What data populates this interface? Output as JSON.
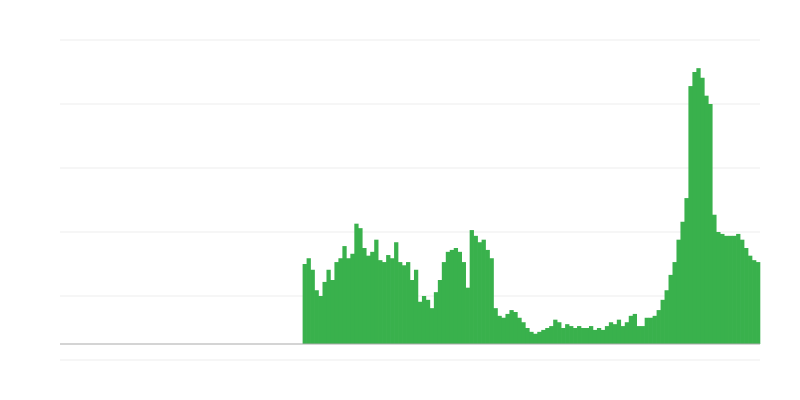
{
  "chart_data": {
    "type": "bar",
    "title": "",
    "xlabel": "",
    "ylabel": "",
    "ylim": [
      -0.25,
      4.75
    ],
    "gridlines": [
      -0.25,
      0.75,
      1.75,
      2.75,
      3.75,
      4.75
    ],
    "grid": true,
    "legend": "none",
    "colors": {
      "bar": "#39b14c",
      "grid": "#eeeeee",
      "baseline": "#aaaaaa"
    },
    "values": [
      0,
      0,
      0,
      0,
      0,
      0,
      0,
      0,
      0,
      0,
      0,
      0,
      0,
      0,
      0,
      0,
      0,
      0,
      0,
      0,
      0,
      0,
      0,
      0,
      0,
      0,
      0,
      0,
      0,
      0,
      0,
      0,
      0,
      0,
      0,
      0,
      0,
      0,
      0,
      0,
      0,
      0,
      0,
      0,
      0,
      0,
      0,
      0,
      0,
      0,
      0,
      0,
      0,
      0,
      0,
      0,
      0,
      0,
      0,
      0,
      0,
      1.25,
      1.34,
      1.16,
      0.84,
      0.75,
      0.97,
      1.16,
      1.0,
      1.28,
      1.34,
      1.53,
      1.34,
      1.41,
      1.88,
      1.81,
      1.5,
      1.38,
      1.44,
      1.63,
      1.31,
      1.28,
      1.39,
      1.34,
      1.59,
      1.28,
      1.23,
      1.28,
      1.0,
      1.16,
      0.66,
      0.75,
      0.69,
      0.56,
      0.81,
      1.0,
      1.28,
      1.44,
      1.47,
      1.5,
      1.44,
      1.28,
      0.88,
      1.78,
      1.69,
      1.59,
      1.63,
      1.47,
      1.34,
      0.56,
      0.44,
      0.41,
      0.47,
      0.53,
      0.5,
      0.41,
      0.34,
      0.25,
      0.19,
      0.16,
      0.19,
      0.22,
      0.25,
      0.28,
      0.38,
      0.34,
      0.25,
      0.31,
      0.28,
      0.25,
      0.28,
      0.25,
      0.25,
      0.28,
      0.22,
      0.25,
      0.22,
      0.28,
      0.34,
      0.31,
      0.38,
      0.28,
      0.34,
      0.44,
      0.47,
      0.28,
      0.28,
      0.41,
      0.41,
      0.44,
      0.53,
      0.69,
      0.84,
      1.08,
      1.28,
      1.63,
      1.91,
      2.28,
      4.03,
      4.25,
      4.31,
      4.16,
      3.88,
      3.75,
      2.02,
      1.75,
      1.72,
      1.69,
      1.69,
      1.69,
      1.72,
      1.63,
      1.5,
      1.38,
      1.31,
      1.28
    ]
  }
}
